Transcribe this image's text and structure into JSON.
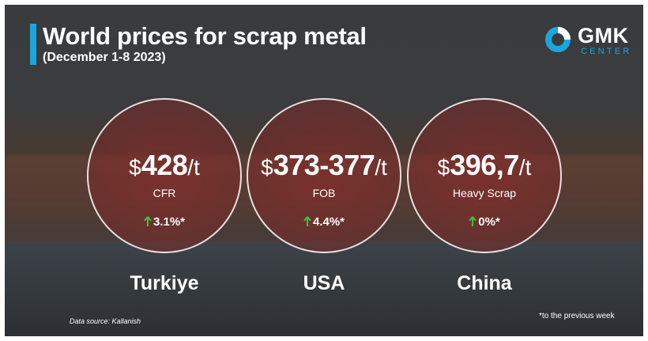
{
  "header": {
    "title": "World prices for scrap metal",
    "subtitle": "(December 1-8  2023)"
  },
  "logo": {
    "name": "GMK",
    "tagline": "CENTER"
  },
  "cards": [
    {
      "currency": "$",
      "amount": "428",
      "unit": "/t",
      "basis": "CFR",
      "change": "3.1%*",
      "country": "Turkiye"
    },
    {
      "currency": "$",
      "amount": "373-377",
      "unit": "/t",
      "basis": "FOB",
      "change": "4.4%*",
      "country": "USA"
    },
    {
      "currency": "$",
      "amount": "396,7",
      "unit": "/t",
      "basis": "Heavy Scrap",
      "change": "0%*",
      "country": "China"
    }
  ],
  "footer": {
    "source": "Data source: Kallanish",
    "note": "*to the previous week"
  }
}
